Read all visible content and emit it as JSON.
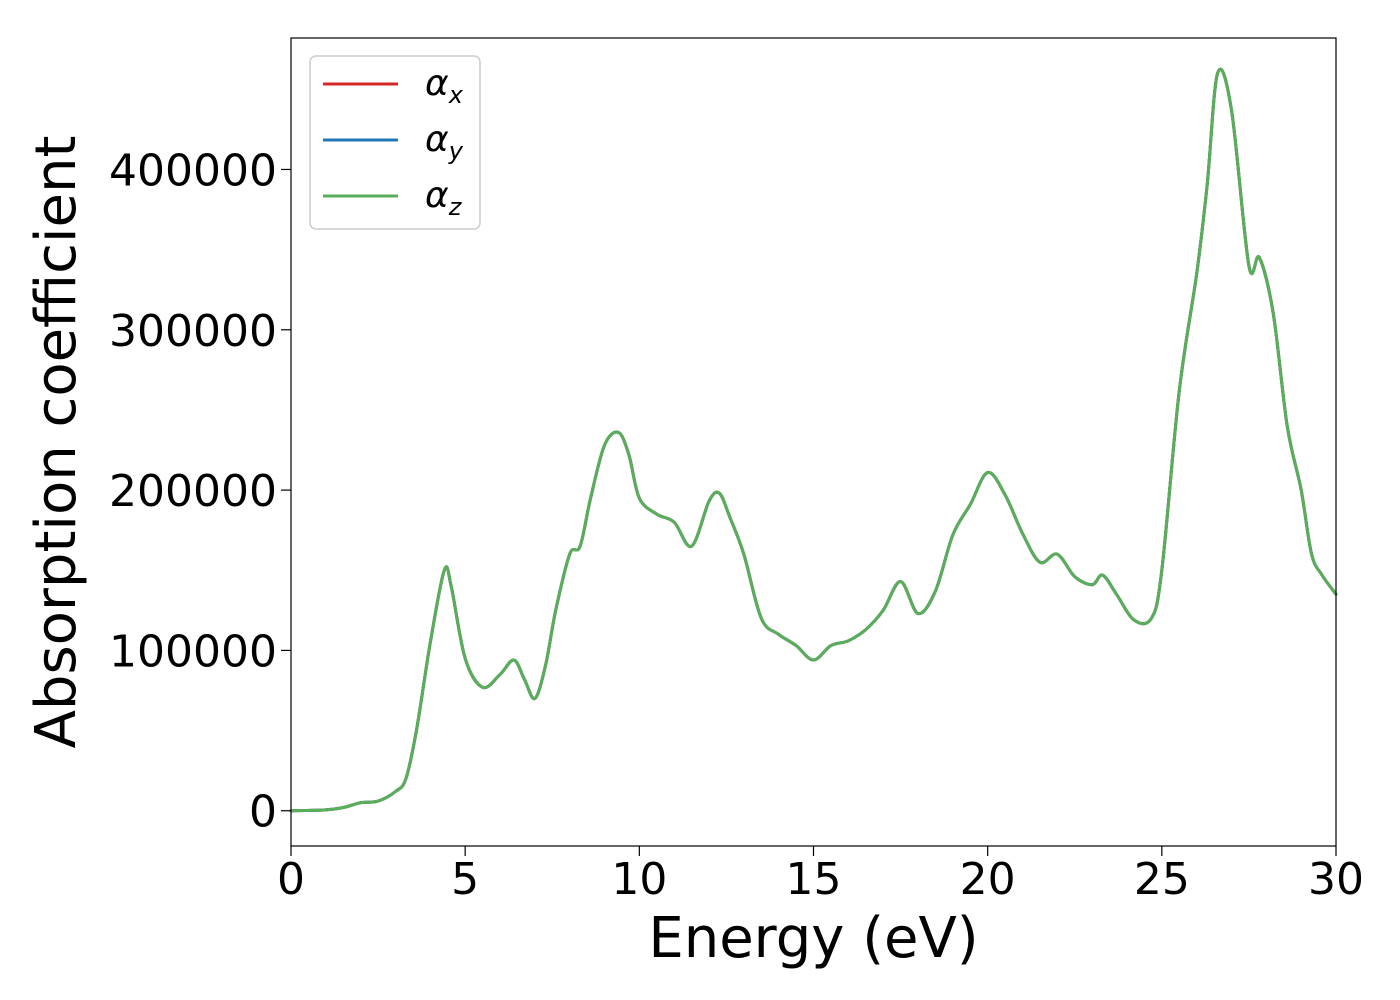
{
  "chart_data": {
    "type": "line",
    "title": "",
    "xlabel": "Energy (eV)",
    "ylabel": "Absorption coefficient",
    "xlim": [
      0,
      30
    ],
    "ylim": [
      -22000,
      482000
    ],
    "xticks": [
      0,
      5,
      10,
      15,
      20,
      25,
      30
    ],
    "yticks": [
      0,
      100000,
      200000,
      300000,
      400000
    ],
    "xtick_labels": [
      "0",
      "5",
      "10",
      "15",
      "20",
      "25",
      "30"
    ],
    "ytick_labels": [
      "0",
      "100000",
      "200000",
      "300000",
      "400000"
    ],
    "grid": false,
    "legend_position": "top-left",
    "x": [
      0,
      1,
      1.5,
      2,
      2.5,
      3,
      3.3,
      3.6,
      4,
      4.4,
      4.6,
      5,
      5.5,
      6,
      6.4,
      6.7,
      7,
      7.3,
      7.6,
      8,
      8.3,
      8.6,
      9,
      9.4,
      9.7,
      10,
      10.5,
      11,
      11.5,
      12,
      12.3,
      12.6,
      13,
      13.5,
      14,
      14.5,
      15,
      15.5,
      16,
      16.5,
      17,
      17.5,
      18,
      18.5,
      19,
      19.5,
      20,
      20.5,
      21,
      21.5,
      22,
      22.5,
      23,
      23.3,
      23.7,
      24.2,
      24.7,
      25,
      25.5,
      26,
      26.3,
      26.6,
      27,
      27.5,
      27.8,
      28.2,
      28.6,
      29,
      29.3,
      29.6,
      30
    ],
    "series": [
      {
        "name": "α_x",
        "color": "#d62728",
        "values": [
          0,
          500,
          2000,
          5000,
          6000,
          12000,
          20000,
          50000,
          105000,
          150000,
          140000,
          95000,
          77000,
          85000,
          94000,
          82000,
          70000,
          90000,
          125000,
          160000,
          165000,
          195000,
          228000,
          236000,
          222000,
          195000,
          185000,
          180000,
          165000,
          193000,
          198000,
          183000,
          160000,
          120000,
          110000,
          103000,
          94000,
          103000,
          106000,
          113000,
          125000,
          143000,
          123000,
          137000,
          172000,
          191000,
          211000,
          197000,
          173000,
          155000,
          160000,
          146000,
          141000,
          147000,
          135000,
          119000,
          120000,
          150000,
          262000,
          335000,
          390000,
          460000,
          437000,
          340000,
          345000,
          310000,
          240000,
          200000,
          160000,
          147000,
          135000
        ]
      },
      {
        "name": "α_y",
        "color": "#1f77b4",
        "values": [
          0,
          500,
          2000,
          5000,
          6000,
          12000,
          20000,
          50000,
          105000,
          150000,
          140000,
          95000,
          77000,
          85000,
          94000,
          82000,
          70000,
          90000,
          125000,
          160000,
          165000,
          195000,
          228000,
          236000,
          222000,
          195000,
          185000,
          180000,
          165000,
          193000,
          198000,
          183000,
          160000,
          120000,
          110000,
          103000,
          94000,
          103000,
          106000,
          113000,
          125000,
          143000,
          123000,
          137000,
          172000,
          191000,
          211000,
          197000,
          173000,
          155000,
          160000,
          146000,
          141000,
          147000,
          135000,
          119000,
          120000,
          150000,
          262000,
          335000,
          390000,
          460000,
          437000,
          340000,
          345000,
          310000,
          240000,
          200000,
          160000,
          147000,
          135000
        ]
      },
      {
        "name": "α_z",
        "color": "#5aae5a",
        "values": [
          0,
          500,
          2000,
          5000,
          6000,
          12000,
          20000,
          50000,
          105000,
          150000,
          140000,
          95000,
          77000,
          85000,
          94000,
          82000,
          70000,
          90000,
          125000,
          160000,
          165000,
          195000,
          228000,
          236000,
          222000,
          195000,
          185000,
          180000,
          165000,
          193000,
          198000,
          183000,
          160000,
          120000,
          110000,
          103000,
          94000,
          103000,
          106000,
          113000,
          125000,
          143000,
          123000,
          137000,
          172000,
          191000,
          211000,
          197000,
          173000,
          155000,
          160000,
          146000,
          141000,
          147000,
          135000,
          119000,
          120000,
          150000,
          262000,
          335000,
          390000,
          460000,
          437000,
          340000,
          345000,
          310000,
          240000,
          200000,
          160000,
          147000,
          135000
        ]
      }
    ],
    "legend": [
      {
        "symbol": "α",
        "sub": "x",
        "color": "#d62728"
      },
      {
        "symbol": "α",
        "sub": "y",
        "color": "#1f77b4"
      },
      {
        "symbol": "α",
        "sub": "z",
        "color": "#5aae5a"
      }
    ]
  }
}
